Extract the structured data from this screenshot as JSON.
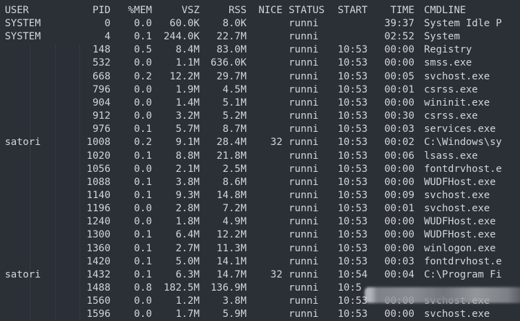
{
  "headers": {
    "user": "USER",
    "pid": "PID",
    "mem": "%MEM",
    "vsz": "VSZ",
    "rss": "RSS",
    "nice": "NICE",
    "status": "STATUS",
    "start": "START",
    "time": "TIME",
    "cmd": "CMDLINE"
  },
  "rows": [
    {
      "user": "SYSTEM",
      "pid": "0",
      "mem": "0.0",
      "vsz": "60.0K",
      "rss": "8.0K",
      "nice": "",
      "status": "runni",
      "start": "",
      "time": "39:37",
      "cmd": "System Idle P"
    },
    {
      "user": "SYSTEM",
      "pid": "4",
      "mem": "0.1",
      "vsz": "244.0K",
      "rss": "22.7M",
      "nice": "",
      "status": "runni",
      "start": "",
      "time": "02:52",
      "cmd": "System"
    },
    {
      "user": "",
      "pid": "148",
      "mem": "0.5",
      "vsz": "8.4M",
      "rss": "83.0M",
      "nice": "",
      "status": "runni",
      "start": "10:53",
      "time": "00:00",
      "cmd": "Registry"
    },
    {
      "user": "",
      "pid": "532",
      "mem": "0.0",
      "vsz": "1.1M",
      "rss": "636.0K",
      "nice": "",
      "status": "runni",
      "start": "10:53",
      "time": "00:00",
      "cmd": "smss.exe"
    },
    {
      "user": "",
      "pid": "668",
      "mem": "0.2",
      "vsz": "12.2M",
      "rss": "29.7M",
      "nice": "",
      "status": "runni",
      "start": "10:53",
      "time": "00:05",
      "cmd": "svchost.exe"
    },
    {
      "user": "",
      "pid": "796",
      "mem": "0.0",
      "vsz": "1.9M",
      "rss": "4.5M",
      "nice": "",
      "status": "runni",
      "start": "10:53",
      "time": "00:01",
      "cmd": "csrss.exe"
    },
    {
      "user": "",
      "pid": "904",
      "mem": "0.0",
      "vsz": "1.4M",
      "rss": "5.1M",
      "nice": "",
      "status": "runni",
      "start": "10:53",
      "time": "00:00",
      "cmd": "wininit.exe"
    },
    {
      "user": "",
      "pid": "912",
      "mem": "0.0",
      "vsz": "3.2M",
      "rss": "5.2M",
      "nice": "",
      "status": "runni",
      "start": "10:53",
      "time": "00:30",
      "cmd": "csrss.exe"
    },
    {
      "user": "",
      "pid": "976",
      "mem": "0.1",
      "vsz": "5.7M",
      "rss": "8.7M",
      "nice": "",
      "status": "runni",
      "start": "10:53",
      "time": "00:03",
      "cmd": "services.exe"
    },
    {
      "user": "satori",
      "pid": "1008",
      "mem": "0.2",
      "vsz": "9.1M",
      "rss": "28.4M",
      "nice": "32",
      "status": "runni",
      "start": "10:53",
      "time": "00:02",
      "cmd": "C:\\Windows\\sy"
    },
    {
      "user": "",
      "pid": "1020",
      "mem": "0.1",
      "vsz": "8.8M",
      "rss": "21.8M",
      "nice": "",
      "status": "runni",
      "start": "10:53",
      "time": "00:06",
      "cmd": "lsass.exe"
    },
    {
      "user": "",
      "pid": "1056",
      "mem": "0.0",
      "vsz": "2.1M",
      "rss": "2.5M",
      "nice": "",
      "status": "runni",
      "start": "10:53",
      "time": "00:00",
      "cmd": "fontdrvhost.e"
    },
    {
      "user": "",
      "pid": "1088",
      "mem": "0.1",
      "vsz": "3.8M",
      "rss": "8.6M",
      "nice": "",
      "status": "runni",
      "start": "10:53",
      "time": "00:00",
      "cmd": "WUDFHost.exe"
    },
    {
      "user": "",
      "pid": "1140",
      "mem": "0.1",
      "vsz": "9.3M",
      "rss": "14.8M",
      "nice": "",
      "status": "runni",
      "start": "10:53",
      "time": "00:09",
      "cmd": "svchost.exe"
    },
    {
      "user": "",
      "pid": "1196",
      "mem": "0.0",
      "vsz": "2.8M",
      "rss": "7.2M",
      "nice": "",
      "status": "runni",
      "start": "10:53",
      "time": "00:01",
      "cmd": "svchost.exe"
    },
    {
      "user": "",
      "pid": "1240",
      "mem": "0.0",
      "vsz": "1.8M",
      "rss": "4.9M",
      "nice": "",
      "status": "runni",
      "start": "10:53",
      "time": "00:00",
      "cmd": "WUDFHost.exe"
    },
    {
      "user": "",
      "pid": "1300",
      "mem": "0.1",
      "vsz": "6.4M",
      "rss": "12.2M",
      "nice": "",
      "status": "runni",
      "start": "10:53",
      "time": "00:00",
      "cmd": "WUDFHost.exe"
    },
    {
      "user": "",
      "pid": "1360",
      "mem": "0.1",
      "vsz": "2.7M",
      "rss": "11.3M",
      "nice": "",
      "status": "runni",
      "start": "10:53",
      "time": "00:00",
      "cmd": "winlogon.exe"
    },
    {
      "user": "",
      "pid": "1420",
      "mem": "0.1",
      "vsz": "5.0M",
      "rss": "14.1M",
      "nice": "",
      "status": "runni",
      "start": "10:53",
      "time": "00:03",
      "cmd": "fontdrvhost.e"
    },
    {
      "user": "satori",
      "pid": "1432",
      "mem": "0.1",
      "vsz": "6.3M",
      "rss": "14.7M",
      "nice": "32",
      "status": "runni",
      "start": "10:54",
      "time": "00:04",
      "cmd": "C:\\Program Fi"
    },
    {
      "user": "",
      "pid": "1488",
      "mem": "0.8",
      "vsz": "182.5M",
      "rss": "136.9M",
      "nice": "",
      "status": "runni",
      "start": "10:5",
      "time": "",
      "cmd": ""
    },
    {
      "user": "",
      "pid": "1560",
      "mem": "0.0",
      "vsz": "1.2M",
      "rss": "3.8M",
      "nice": "",
      "status": "runni",
      "start": "10:53",
      "time": "00:00",
      "cmd": "svchost.exe"
    },
    {
      "user": "",
      "pid": "1596",
      "mem": "0.0",
      "vsz": "1.7M",
      "rss": "5.9M",
      "nice": "",
      "status": "runni",
      "start": "10:53",
      "time": "00:00",
      "cmd": "svchost.exe"
    }
  ]
}
